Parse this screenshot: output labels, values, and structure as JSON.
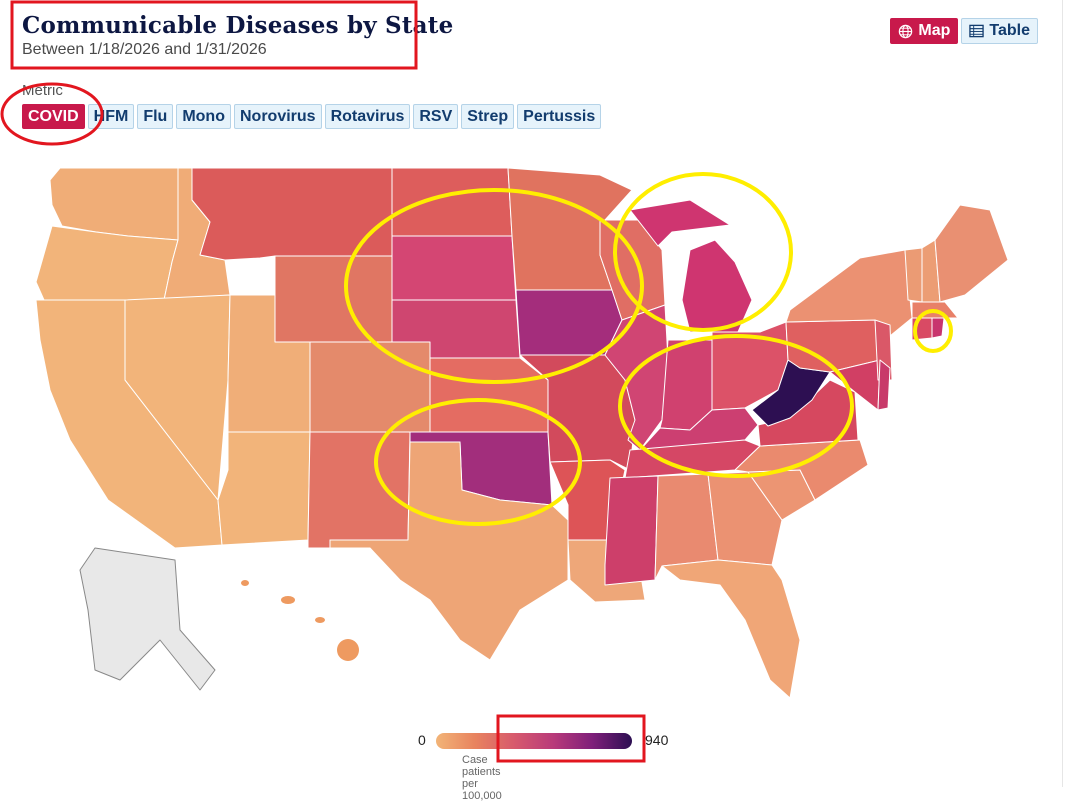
{
  "header": {
    "title": "Communicable Diseases by State",
    "subtitle": "Between 1/18/2026 and 1/31/2026"
  },
  "view_toggle": {
    "map_label": "Map",
    "table_label": "Table",
    "map_icon": "globe-icon",
    "table_icon": "table-icon"
  },
  "metric": {
    "label": "Metric",
    "options": [
      "COVID",
      "HFM",
      "Flu",
      "Mono",
      "Norovirus",
      "Rotavirus",
      "RSV",
      "Strep",
      "Pertussis"
    ],
    "selected": "COVID"
  },
  "legend": {
    "min": "0",
    "max": "940",
    "caption": "Case patients per 100,000",
    "colors": [
      "#f2b477",
      "#e8835f",
      "#d75a6d",
      "#b83a7a",
      "#7e1f7a",
      "#2d0f52"
    ]
  },
  "colors": {
    "accent": "#c8194b",
    "no_data": "#e8e8e8",
    "annotation_red": "#e2161f",
    "annotation_yellow": "#ffee00"
  }
}
